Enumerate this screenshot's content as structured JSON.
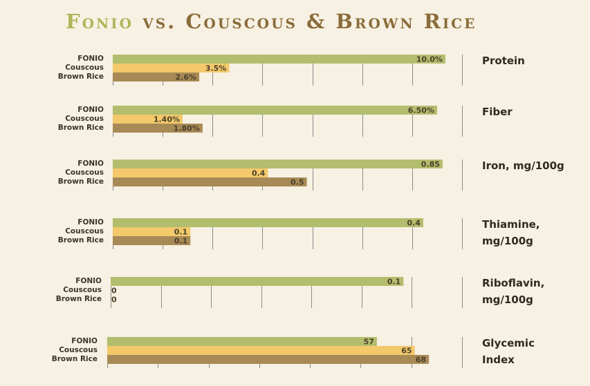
{
  "title": {
    "part1": "Fonio",
    "part2": "vs. Couscous & Brown Rice"
  },
  "colors": {
    "fonio": "#b3bd6e",
    "couscous": "#f3c96b",
    "brown_rice": "#a88a57",
    "title_accent": "#b0b45a",
    "title_main": "#8a6c3a",
    "gridline": "#8a8a8a"
  },
  "chart_data": [
    {
      "type": "bar",
      "metric": [
        "Protein"
      ],
      "categories": [
        "FONIO",
        "Couscous",
        "Brown Rice"
      ],
      "values": [
        10.0,
        3.5,
        2.6
      ],
      "value_labels": [
        "10.0%",
        "3.5%",
        "2.6%"
      ],
      "xlim": [
        0,
        10.5
      ]
    },
    {
      "type": "bar",
      "metric": [
        "Fiber"
      ],
      "categories": [
        "FONIO",
        "Couscous",
        "Brown Rice"
      ],
      "values": [
        6.5,
        1.4,
        1.8
      ],
      "value_labels": [
        "6.50%",
        "1.40%",
        "1.80%"
      ],
      "xlim": [
        0,
        7.0
      ]
    },
    {
      "type": "bar",
      "metric": [
        "Iron, mg/100g"
      ],
      "categories": [
        "FONIO",
        "Couscous",
        "Brown Rice"
      ],
      "values": [
        0.85,
        0.4,
        0.5
      ],
      "value_labels": [
        "0.85",
        "0.4",
        "0.5"
      ],
      "xlim": [
        0,
        0.9
      ]
    },
    {
      "type": "bar",
      "metric": [
        "Thiamine,",
        "mg/100g"
      ],
      "categories": [
        "FONIO",
        "Couscous",
        "Brown Rice"
      ],
      "values": [
        0.4,
        0.1,
        0.1
      ],
      "value_labels": [
        "0.4",
        "0.1",
        "0.1"
      ],
      "xlim": [
        0,
        0.45
      ]
    },
    {
      "type": "bar",
      "metric": [
        "Riboflavin,",
        "mg/100g"
      ],
      "categories": [
        "FONIO",
        "Couscous",
        "Brown Rice"
      ],
      "values": [
        0.1,
        0,
        0
      ],
      "value_labels": [
        "0.1",
        "0",
        "0"
      ],
      "xlim": [
        0,
        0.12
      ]
    },
    {
      "type": "bar",
      "metric": [
        "Glycemic",
        "Index"
      ],
      "categories": [
        "FONIO",
        "Couscous",
        "Brown Rice"
      ],
      "values": [
        57,
        65,
        68
      ],
      "value_labels": [
        "57",
        "65",
        "68"
      ],
      "xlim": [
        0,
        75
      ]
    }
  ]
}
